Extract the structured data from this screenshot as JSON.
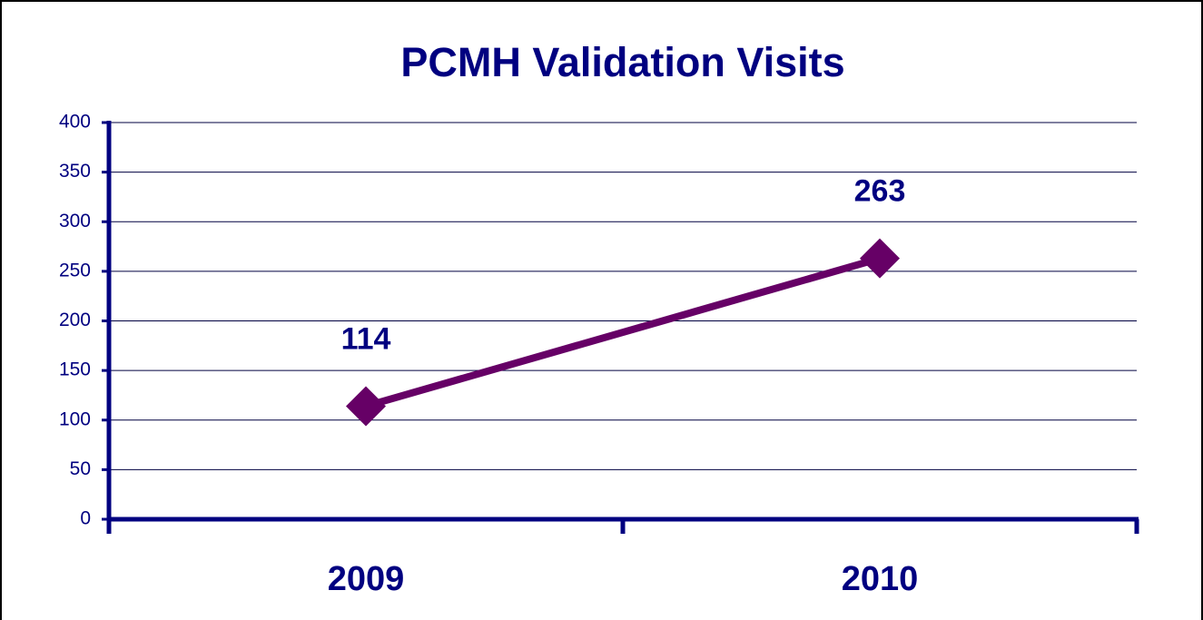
{
  "chart_data": {
    "type": "line",
    "title": "PCMH Validation Visits",
    "categories": [
      "2009",
      "2010"
    ],
    "values": [
      114,
      263
    ],
    "color": "#660066",
    "ylim": [
      0,
      400
    ],
    "yticks": [
      0,
      50,
      100,
      150,
      200,
      250,
      300,
      350,
      400
    ],
    "grid": true
  }
}
